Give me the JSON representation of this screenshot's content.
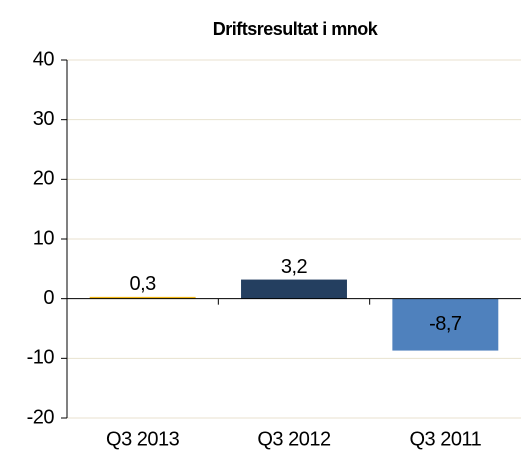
{
  "chart_data": {
    "type": "bar",
    "title": "Driftsresultat i mnok",
    "categories": [
      "Q3 2013",
      "Q3 2012",
      "Q3 2011"
    ],
    "values": [
      0.3,
      3.2,
      -8.7
    ],
    "value_labels": [
      "0,3",
      "3,2",
      "-8,7"
    ],
    "colors": [
      "#f2b817",
      "#243f60",
      "#4f81bd"
    ],
    "ylim": [
      -20,
      40
    ],
    "yticks": [
      -20,
      -10,
      0,
      10,
      20,
      30,
      40
    ],
    "grid": true
  }
}
